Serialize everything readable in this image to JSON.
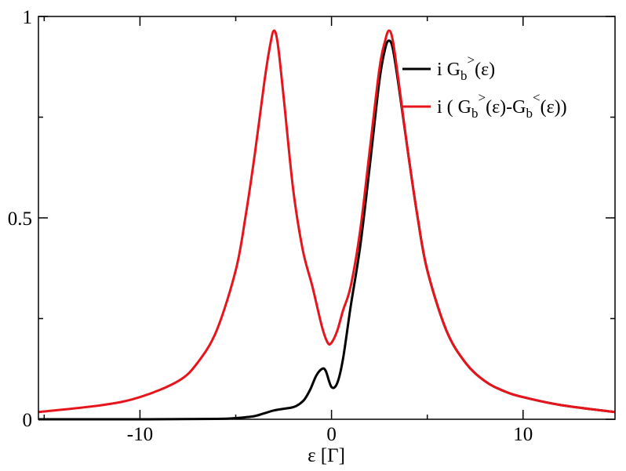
{
  "chart_data": {
    "type": "line",
    "title": "",
    "xlabel": "ε [Γ]",
    "ylabel": "",
    "xlim": [
      -15.3,
      14.8
    ],
    "ylim": [
      0,
      1
    ],
    "x_ticks": [
      -10,
      0,
      10
    ],
    "x_tick_labels": [
      "-10",
      "0",
      "10"
    ],
    "y_ticks": [
      0,
      0.5,
      1
    ],
    "y_tick_labels": [
      "0",
      "0.5",
      "1"
    ],
    "grid": false,
    "legend_position": "top-right",
    "legend": [
      {
        "prefix": "i G",
        "sub": "b",
        "sup": ">",
        "suffix": "(ε)",
        "color": "#000000"
      },
      {
        "prefix": "i ( G",
        "sub": "b",
        "sup": ">",
        "mid": "(ε)-G",
        "sub2": "b",
        "sup2": "<",
        "suffix": "(ε))",
        "color": "#e8141c"
      }
    ],
    "series": [
      {
        "color": "#000000",
        "x": [
          -15.3,
          -10,
          -6,
          -5,
          -4.5,
          -4,
          -3.5,
          -3,
          -2.5,
          -2,
          -1.7,
          -1.4,
          -1.1,
          -0.8,
          -0.5,
          -0.3,
          0,
          0.3,
          0.6,
          1,
          1.5,
          2,
          2.5,
          2.8,
          3,
          3.2,
          3.5,
          4,
          4.5,
          5,
          6,
          7,
          8,
          9,
          10,
          12,
          14.8
        ],
        "y": [
          0,
          0,
          0.001,
          0.003,
          0.005,
          0.008,
          0.015,
          0.022,
          0.026,
          0.03,
          0.037,
          0.05,
          0.075,
          0.108,
          0.125,
          0.12,
          0.08,
          0.09,
          0.15,
          0.28,
          0.43,
          0.63,
          0.84,
          0.92,
          0.94,
          0.92,
          0.83,
          0.66,
          0.5,
          0.37,
          0.22,
          0.14,
          0.095,
          0.07,
          0.055,
          0.035,
          0.018
        ]
      },
      {
        "color": "#e8141c",
        "x": [
          -15.3,
          -12,
          -10,
          -8,
          -7,
          -6,
          -5,
          -4.5,
          -4,
          -3.5,
          -3.2,
          -3,
          -2.8,
          -2.5,
          -2,
          -1.5,
          -1,
          -0.5,
          -0.2,
          0,
          0.3,
          0.6,
          1,
          1.5,
          2,
          2.5,
          2.8,
          3,
          3.2,
          3.5,
          4,
          4.5,
          5,
          6,
          7,
          8,
          9,
          10,
          12,
          14.8
        ],
        "y": [
          0.018,
          0.035,
          0.055,
          0.095,
          0.14,
          0.22,
          0.37,
          0.5,
          0.66,
          0.84,
          0.93,
          0.965,
          0.93,
          0.8,
          0.57,
          0.42,
          0.33,
          0.23,
          0.19,
          0.19,
          0.22,
          0.27,
          0.33,
          0.47,
          0.67,
          0.87,
          0.94,
          0.965,
          0.94,
          0.84,
          0.66,
          0.5,
          0.37,
          0.22,
          0.14,
          0.095,
          0.07,
          0.055,
          0.035,
          0.018
        ]
      }
    ]
  }
}
